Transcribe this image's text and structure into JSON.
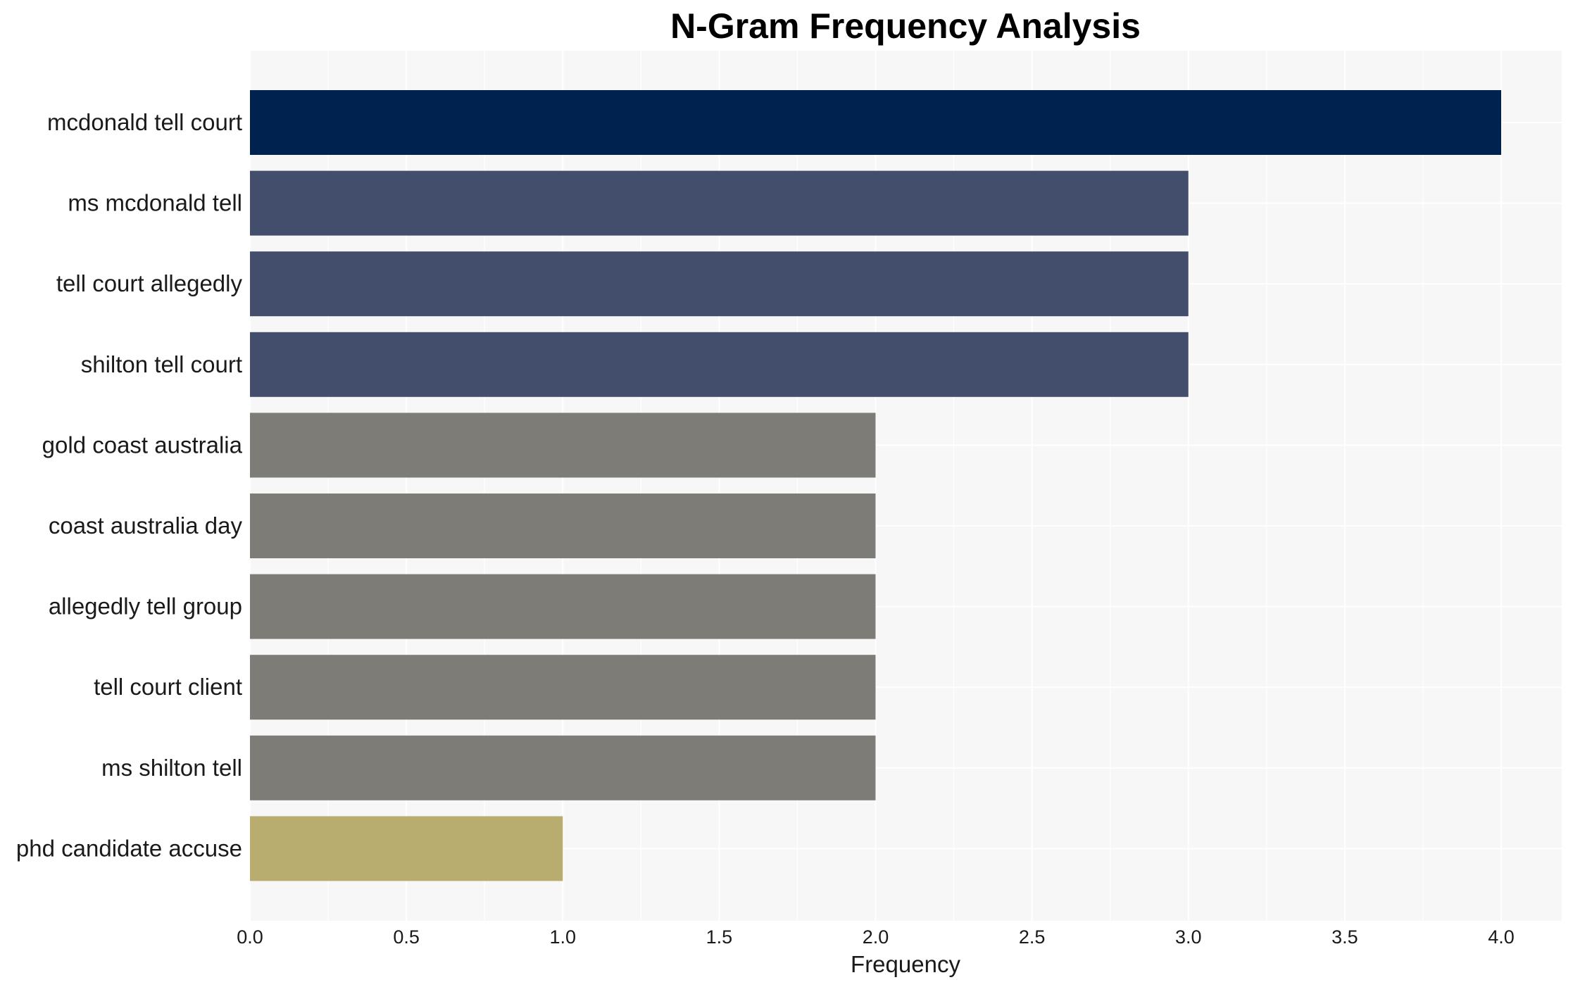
{
  "chart_data": {
    "type": "bar",
    "orientation": "horizontal",
    "title": "N-Gram Frequency Analysis",
    "xlabel": "Frequency",
    "ylabel": "",
    "xlim": [
      0,
      4.2
    ],
    "x_ticks": [
      "0.0",
      "0.5",
      "1.0",
      "1.5",
      "2.0",
      "2.5",
      "3.0",
      "3.5",
      "4.0"
    ],
    "grid": true,
    "legend": "none",
    "categories": [
      "mcdonald tell court",
      "ms mcdonald tell",
      "tell court allegedly",
      "shilton tell court",
      "gold coast australia",
      "coast australia day",
      "allegedly tell group",
      "tell court client",
      "ms shilton tell",
      "phd candidate accuse"
    ],
    "values": [
      4,
      3,
      3,
      3,
      2,
      2,
      2,
      2,
      2,
      1
    ],
    "bar_colors": [
      "#00224e",
      "#434e6c",
      "#434e6c",
      "#434e6c",
      "#7d7c76",
      "#7d7c76",
      "#7d7c76",
      "#7d7c76",
      "#7d7c76",
      "#b8ac6f"
    ],
    "plot_background": "#f7f7f7",
    "grid_color": "#ffffff"
  }
}
